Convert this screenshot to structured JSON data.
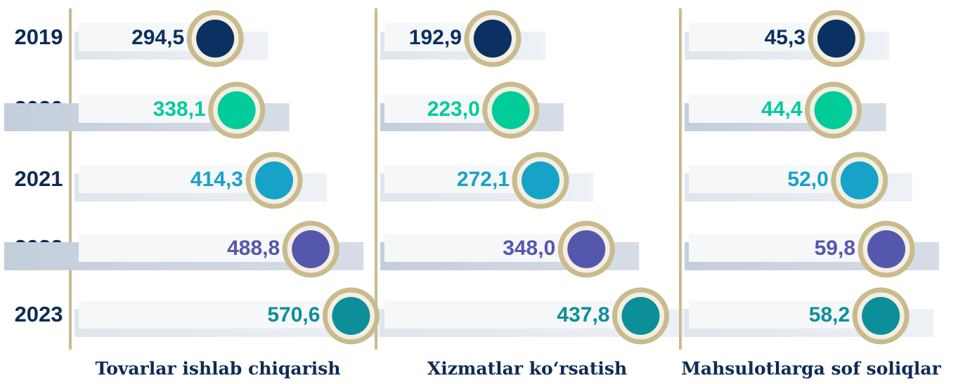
{
  "chart_data": {
    "type": "bar",
    "orientation": "horizontal",
    "categories": [
      "2019",
      "2020",
      "2021",
      "2022",
      "2023"
    ],
    "colors": [
      "#0a3161",
      "#00cc99",
      "#17a3c8",
      "#5557ad",
      "#0c8f99"
    ],
    "series": [
      {
        "name": "Tovarlar ishlab chiqarish",
        "values": [
          294.5,
          338.1,
          414.3,
          488.8,
          570.6
        ],
        "value_labels": [
          "294,5",
          "338,1",
          "414,3",
          "488,8",
          "570,6"
        ],
        "xlim": [
          0,
          600
        ]
      },
      {
        "name": "Xizmatlar ko‘rsatish",
        "values": [
          192.9,
          223.0,
          272.1,
          348.0,
          437.8
        ],
        "value_labels": [
          "192,9",
          "223,0",
          "272,1",
          "348,0",
          "437,8"
        ],
        "xlim": [
          0,
          500
        ]
      },
      {
        "name": "Mahsulotlarga sof soliqlar",
        "values": [
          45.3,
          44.4,
          52.0,
          59.8,
          58.2
        ],
        "value_labels": [
          "45,3",
          "44,4",
          "52,0",
          "59,8",
          "58,2"
        ],
        "xlim": [
          0,
          80
        ]
      }
    ]
  }
}
